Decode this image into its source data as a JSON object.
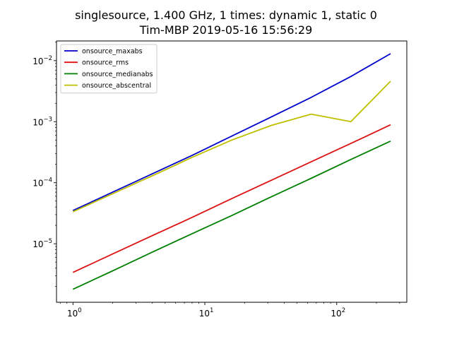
{
  "chart_data": {
    "type": "line",
    "title": [
      "singlesource, 1.400 GHz, 1 times: dynamic 1, static 0",
      "Tim-MBP 2019-05-16 15:56:29"
    ],
    "xlabel": "",
    "ylabel": "",
    "xscale": "log",
    "yscale": "log",
    "xlim": [
      0.75,
      340
    ],
    "ylim": [
      1.1e-06,
      0.021
    ],
    "grid": false,
    "legend_position": "top-left",
    "x": [
      1,
      2,
      4,
      8,
      16,
      32,
      64,
      128,
      256
    ],
    "x_tick_labels": [
      {
        "value": 1,
        "base": "10",
        "exp": "0"
      },
      {
        "value": 10,
        "base": "10",
        "exp": "1"
      },
      {
        "value": 100,
        "base": "10",
        "exp": "2"
      }
    ],
    "y_tick_labels": [
      {
        "value": 1e-05,
        "base": "10",
        "exp": "−5"
      },
      {
        "value": 0.0001,
        "base": "10",
        "exp": "−4"
      },
      {
        "value": 0.001,
        "base": "10",
        "exp": "−3"
      },
      {
        "value": 0.01,
        "base": "10",
        "exp": "−2"
      }
    ],
    "series": [
      {
        "name": "onsource_maxabs",
        "color": "#0000cc",
        "values": [
          3.5e-05,
          7e-05,
          0.00014,
          0.00028,
          0.00058,
          0.0012,
          0.0025,
          0.0055,
          0.013
        ]
      },
      {
        "name": "onsource_rms",
        "color": "#dd1111",
        "values": [
          3.4e-06,
          6.8e-06,
          1.36e-05,
          2.7e-05,
          5.5e-05,
          0.00011,
          0.00022,
          0.00044,
          0.00089
        ]
      },
      {
        "name": "onsource_medianabs",
        "color": "#007f00",
        "values": [
          1.8e-06,
          3.6e-06,
          7.3e-06,
          1.46e-05,
          2.9e-05,
          5.9e-05,
          0.000118,
          0.00024,
          0.00048
        ]
      },
      {
        "name": "onsource_abscentral",
        "color": "#bfbf00",
        "values": [
          3.35e-05,
          6.6e-05,
          0.00013,
          0.00026,
          0.0005,
          0.00087,
          0.00133,
          0.001,
          0.0046
        ]
      }
    ]
  }
}
